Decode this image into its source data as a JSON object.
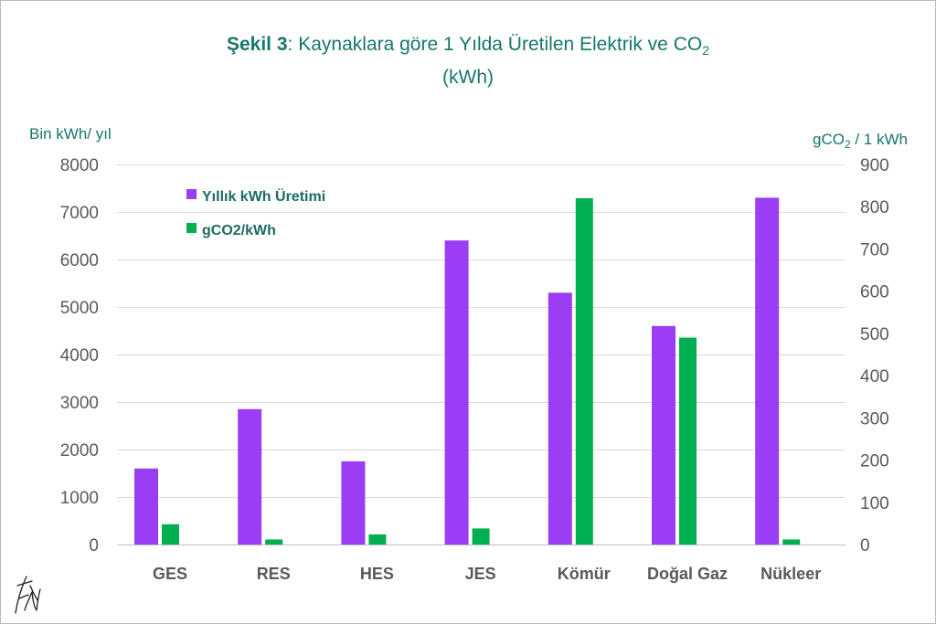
{
  "chart_data": {
    "type": "bar",
    "title": {
      "figure": "Şekil 3",
      "text": ": Kaynaklara göre 1 Yılda Üretilen Elektrik ve CO",
      "subscript": "2",
      "line2": "(kWh)"
    },
    "categories": [
      "GES",
      "RES",
      "HES",
      "JES",
      "Kömür",
      "Doğal Gaz",
      "Nükleer"
    ],
    "series": [
      {
        "name": "Yıllık kWh Üretimi",
        "axis": "left",
        "color": "#9b3df5",
        "values": [
          1600,
          2850,
          1750,
          6400,
          5300,
          4600,
          7300
        ]
      },
      {
        "name": "gCO2/kWh",
        "axis": "right",
        "color": "#00b050",
        "values": [
          48,
          12,
          24,
          38,
          820,
          490,
          12
        ]
      }
    ],
    "y_left": {
      "label": "Bin kWh/ yıl",
      "min": 0,
      "max": 8000,
      "ticks": [
        0,
        1000,
        2000,
        3000,
        4000,
        5000,
        6000,
        7000,
        8000
      ]
    },
    "y_right": {
      "label": "gCO",
      "label_subscript": "2",
      "label_rest": " / 1 kWh",
      "min": 0,
      "max": 900,
      "ticks": [
        0,
        100,
        200,
        300,
        400,
        500,
        600,
        700,
        800,
        900
      ]
    },
    "grid": true,
    "legend_position": "top-left"
  }
}
